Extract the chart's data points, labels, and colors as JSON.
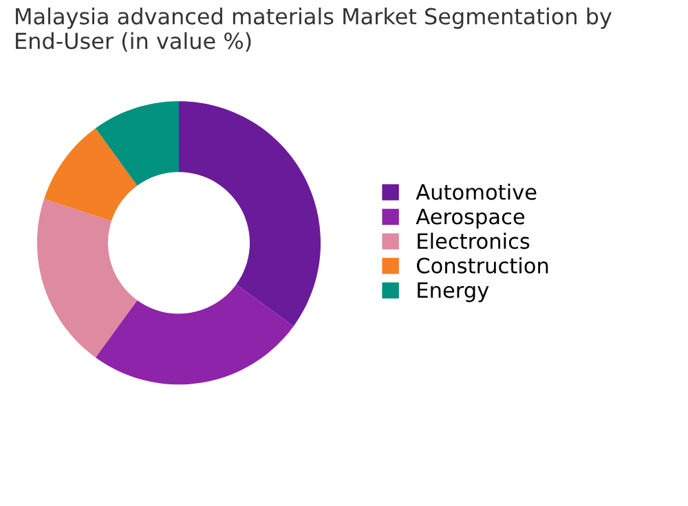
{
  "chart_data": {
    "type": "donut",
    "title": "Malaysia advanced materials Market Segmentation by End-User (in value %)",
    "categories": [
      "Automotive",
      "Aerospace",
      "Electronics",
      "Construction",
      "Energy"
    ],
    "values": [
      35,
      25,
      20,
      10,
      10
    ],
    "colors": [
      "#6a1b9a",
      "#8e24aa",
      "#de8aa0",
      "#f57f25",
      "#00917f"
    ],
    "legend": "right"
  }
}
